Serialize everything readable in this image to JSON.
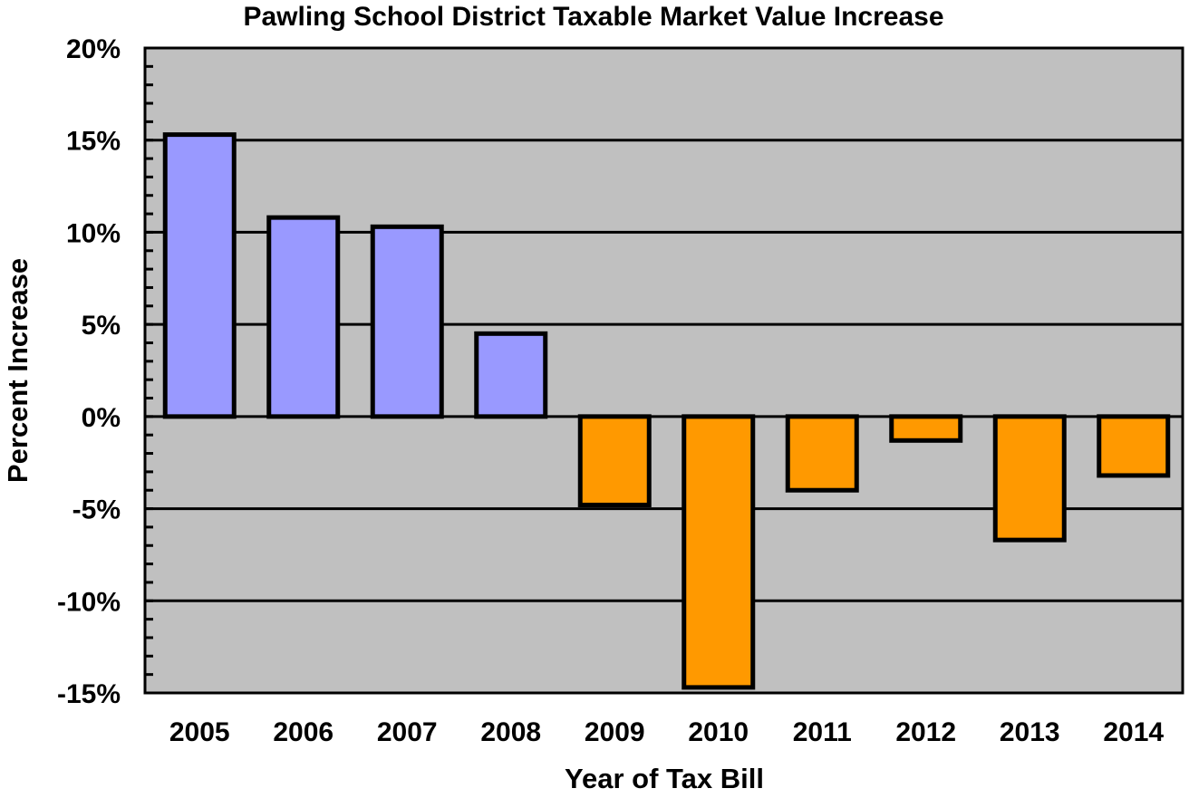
{
  "chart_data": {
    "type": "bar",
    "title": "Pawling School District Taxable Market Value Increase",
    "xlabel": "Year of Tax Bill",
    "ylabel": "Percent Increase",
    "categories": [
      "2005",
      "2006",
      "2007",
      "2008",
      "2009",
      "2010",
      "2011",
      "2012",
      "2013",
      "2014"
    ],
    "values": [
      15.3,
      10.8,
      10.3,
      4.5,
      -4.8,
      -14.7,
      -4.0,
      -1.3,
      -6.7,
      -3.2
    ],
    "value_unit": "%",
    "ylim": [
      -15,
      20
    ],
    "yticks": [
      20,
      15,
      10,
      5,
      0,
      -5,
      -10,
      -15
    ],
    "ytick_labels": [
      "20%",
      "15%",
      "10%",
      "5%",
      "0%",
      "-5%",
      "-10%",
      "-15%"
    ],
    "minor_ticks_per_major": 5,
    "grid": true,
    "legend": "none",
    "colors": {
      "positive": "#9999ff",
      "negative": "#ff9900",
      "plot_background": "#c0c0c0",
      "outline": "#000000"
    }
  }
}
